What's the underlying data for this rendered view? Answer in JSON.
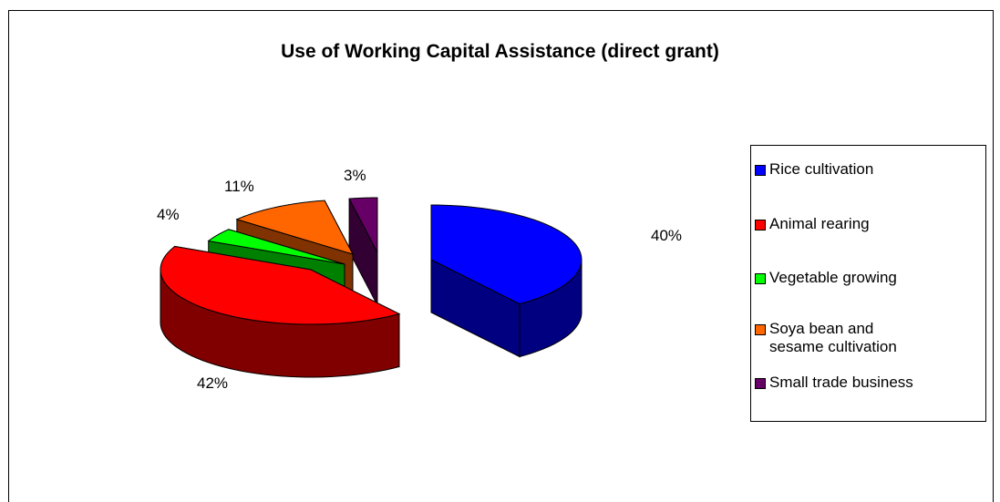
{
  "chart_data": {
    "type": "pie",
    "title": "Use of Working Capital Assistance (direct grant)",
    "labels": [
      "Rice cultivation",
      "Animal rearing",
      "Vegetable growing",
      "Soya bean and sesame cultivation",
      "Small trade business"
    ],
    "legend_labels": [
      "Rice cultivation",
      "Animal rearing",
      "Vegetable growing",
      "Soya bean and\nsesame cultivation",
      "Small trade business"
    ],
    "values": [
      40,
      42,
      4,
      11,
      3
    ],
    "value_labels": [
      "40%",
      "42%",
      "4%",
      "11%",
      "3%"
    ],
    "colors": [
      "#0000FF",
      "#FF0000",
      "#00FF00",
      "#FF6600",
      "#660066"
    ],
    "side_colors": [
      "#000080",
      "#800000",
      "#008000",
      "#803300",
      "#330033"
    ],
    "legend_position": "right",
    "style": "3d-exploded"
  }
}
